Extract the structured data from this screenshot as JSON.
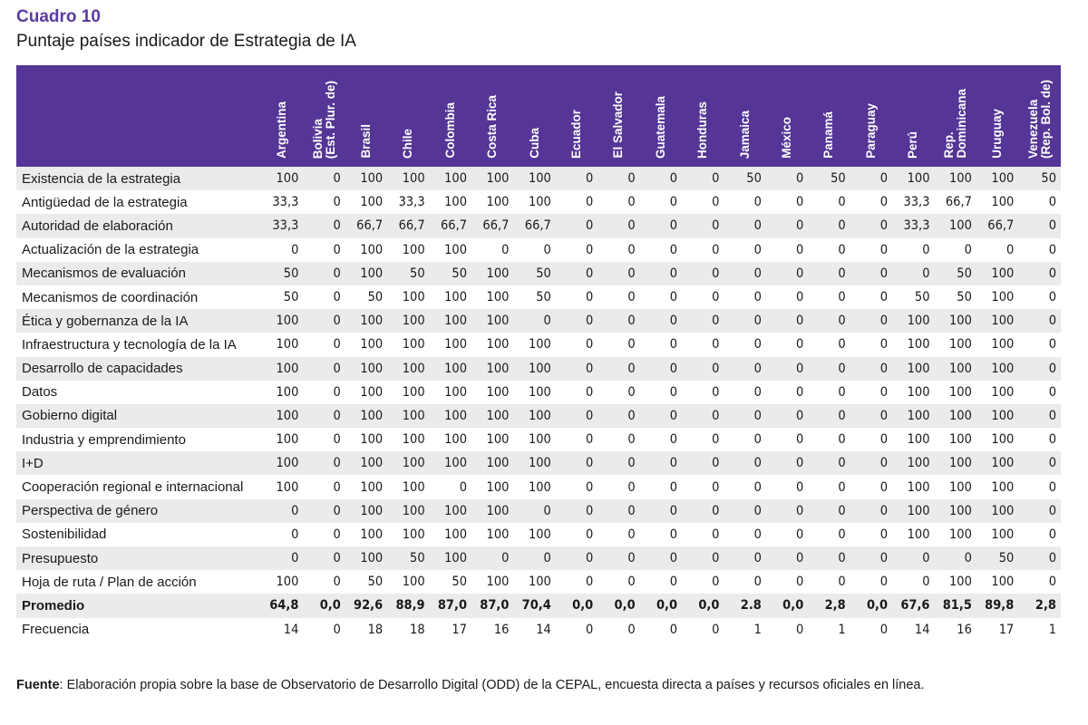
{
  "caption": {
    "label": "Cuadro 10",
    "title": "Puntaje países indicador de Estrategia de IA"
  },
  "table": {
    "columns": [
      "Argentina",
      "Bolivia\n(Est. Plur. de)",
      "Brasil",
      "Chile",
      "Colombia",
      "Costa Rica",
      "Cuba",
      "Ecuador",
      "El Salvador",
      "Guatemala",
      "Honduras",
      "Jamaica",
      "México",
      "Panamá",
      "Paraguay",
      "Perú",
      "Rep.\nDominicana",
      "Uruguay",
      "Venezuela\n(Rep. Bol. de)"
    ],
    "rows": [
      {
        "label": "Existencia de la estrategia",
        "values": [
          "100",
          "0",
          "100",
          "100",
          "100",
          "100",
          "100",
          "0",
          "0",
          "0",
          "0",
          "50",
          "0",
          "50",
          "0",
          "100",
          "100",
          "100",
          "50"
        ]
      },
      {
        "label": "Antigüedad de la estrategia",
        "values": [
          "33,3",
          "0",
          "100",
          "33,3",
          "100",
          "100",
          "100",
          "0",
          "0",
          "0",
          "0",
          "0",
          "0",
          "0",
          "0",
          "33,3",
          "66,7",
          "100",
          "0"
        ]
      },
      {
        "label": "Autoridad de elaboración",
        "values": [
          "33,3",
          "0",
          "66,7",
          "66,7",
          "66,7",
          "66,7",
          "66,7",
          "0",
          "0",
          "0",
          "0",
          "0",
          "0",
          "0",
          "0",
          "33,3",
          "100",
          "66,7",
          "0"
        ]
      },
      {
        "label": "Actualización de la estrategia",
        "values": [
          "0",
          "0",
          "100",
          "100",
          "100",
          "0",
          "0",
          "0",
          "0",
          "0",
          "0",
          "0",
          "0",
          "0",
          "0",
          "0",
          "0",
          "0",
          "0"
        ]
      },
      {
        "label": "Mecanismos de evaluación",
        "values": [
          "50",
          "0",
          "100",
          "50",
          "50",
          "100",
          "50",
          "0",
          "0",
          "0",
          "0",
          "0",
          "0",
          "0",
          "0",
          "0",
          "50",
          "100",
          "0"
        ]
      },
      {
        "label": "Mecanismos de coordinación",
        "values": [
          "50",
          "0",
          "50",
          "100",
          "100",
          "100",
          "50",
          "0",
          "0",
          "0",
          "0",
          "0",
          "0",
          "0",
          "0",
          "50",
          "50",
          "100",
          "0"
        ]
      },
      {
        "label": "Ética y gobernanza de la IA",
        "values": [
          "100",
          "0",
          "100",
          "100",
          "100",
          "100",
          "0",
          "0",
          "0",
          "0",
          "0",
          "0",
          "0",
          "0",
          "0",
          "100",
          "100",
          "100",
          "0"
        ]
      },
      {
        "label": "Infraestructura y tecnología de la IA",
        "values": [
          "100",
          "0",
          "100",
          "100",
          "100",
          "100",
          "100",
          "0",
          "0",
          "0",
          "0",
          "0",
          "0",
          "0",
          "0",
          "100",
          "100",
          "100",
          "0"
        ]
      },
      {
        "label": "Desarrollo de capacidades",
        "values": [
          "100",
          "0",
          "100",
          "100",
          "100",
          "100",
          "100",
          "0",
          "0",
          "0",
          "0",
          "0",
          "0",
          "0",
          "0",
          "100",
          "100",
          "100",
          "0"
        ]
      },
      {
        "label": "Datos",
        "values": [
          "100",
          "0",
          "100",
          "100",
          "100",
          "100",
          "100",
          "0",
          "0",
          "0",
          "0",
          "0",
          "0",
          "0",
          "0",
          "100",
          "100",
          "100",
          "0"
        ]
      },
      {
        "label": "Gobierno digital",
        "values": [
          "100",
          "0",
          "100",
          "100",
          "100",
          "100",
          "100",
          "0",
          "0",
          "0",
          "0",
          "0",
          "0",
          "0",
          "0",
          "100",
          "100",
          "100",
          "0"
        ]
      },
      {
        "label": "Industria y emprendimiento",
        "values": [
          "100",
          "0",
          "100",
          "100",
          "100",
          "100",
          "100",
          "0",
          "0",
          "0",
          "0",
          "0",
          "0",
          "0",
          "0",
          "100",
          "100",
          "100",
          "0"
        ]
      },
      {
        "label": "I+D",
        "values": [
          "100",
          "0",
          "100",
          "100",
          "100",
          "100",
          "100",
          "0",
          "0",
          "0",
          "0",
          "0",
          "0",
          "0",
          "0",
          "100",
          "100",
          "100",
          "0"
        ]
      },
      {
        "label": "Cooperación regional e internacional",
        "values": [
          "100",
          "0",
          "100",
          "100",
          "0",
          "100",
          "100",
          "0",
          "0",
          "0",
          "0",
          "0",
          "0",
          "0",
          "0",
          "100",
          "100",
          "100",
          "0"
        ]
      },
      {
        "label": "Perspectiva de género",
        "values": [
          "0",
          "0",
          "100",
          "100",
          "100",
          "100",
          "0",
          "0",
          "0",
          "0",
          "0",
          "0",
          "0",
          "0",
          "0",
          "100",
          "100",
          "100",
          "0"
        ]
      },
      {
        "label": "Sostenibilidad",
        "values": [
          "0",
          "0",
          "100",
          "100",
          "100",
          "100",
          "100",
          "0",
          "0",
          "0",
          "0",
          "0",
          "0",
          "0",
          "0",
          "100",
          "100",
          "100",
          "0"
        ]
      },
      {
        "label": "Presupuesto",
        "values": [
          "0",
          "0",
          "100",
          "50",
          "100",
          "0",
          "0",
          "0",
          "0",
          "0",
          "0",
          "0",
          "0",
          "0",
          "0",
          "0",
          "0",
          "50",
          "0"
        ]
      },
      {
        "label": "Hoja de ruta / Plan de acción",
        "values": [
          "100",
          "0",
          "50",
          "100",
          "50",
          "100",
          "100",
          "0",
          "0",
          "0",
          "0",
          "0",
          "0",
          "0",
          "0",
          "0",
          "100",
          "100",
          "0"
        ]
      }
    ],
    "average": {
      "label": "Promedio",
      "values": [
        "64,8",
        "0,0",
        "92,6",
        "88,9",
        "87,0",
        "87,0",
        "70,4",
        "0,0",
        "0,0",
        "0,0",
        "0,0",
        "2.8",
        "0,0",
        "2,8",
        "0,0",
        "67,6",
        "81,5",
        "89,8",
        "2,8"
      ]
    },
    "frequency": {
      "label": "Frecuencia",
      "values": [
        "14",
        "0",
        "18",
        "18",
        "17",
        "16",
        "14",
        "0",
        "0",
        "0",
        "0",
        "1",
        "0",
        "1",
        "0",
        "14",
        "16",
        "17",
        "1"
      ]
    }
  },
  "source": {
    "label": "Fuente",
    "text": ": Elaboración propia sobre la base de Observatorio de Desarrollo Digital (ODD) de la CEPAL, encuesta directa a países y recursos oficiales en línea."
  },
  "colors": {
    "header_background": "#553596",
    "caption_label": "#5b3b9e",
    "row_stripe": "#ebebeb"
  }
}
